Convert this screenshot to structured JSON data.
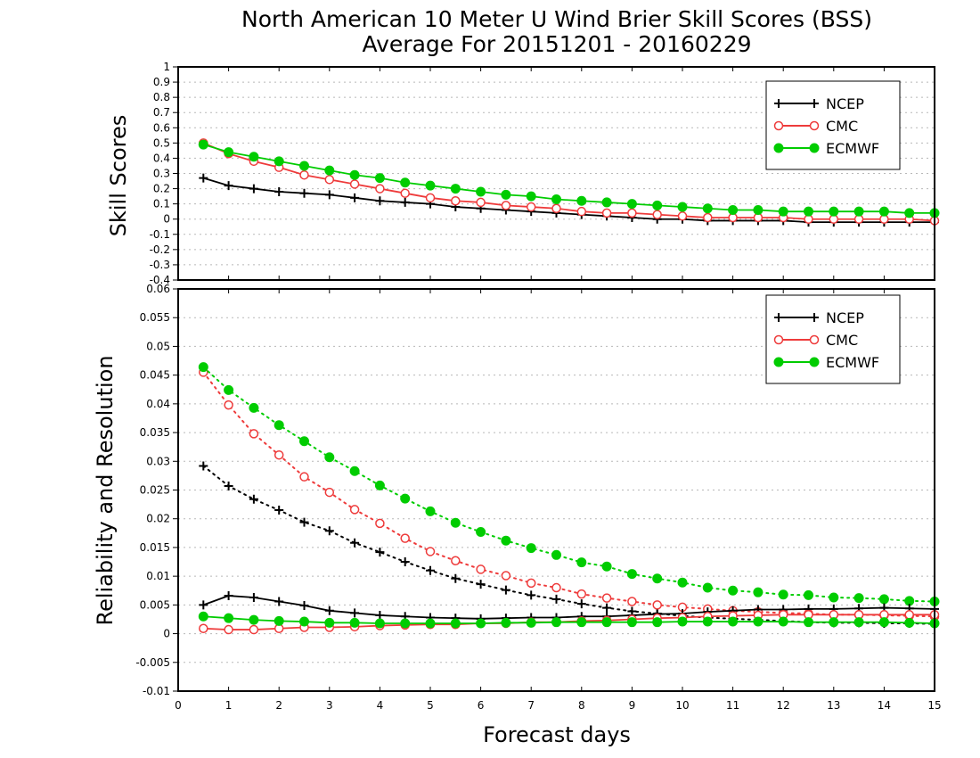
{
  "title_line1": "North American 10 Meter U Wind Brier Skill Scores (BSS)",
  "title_line2": "Average For 20151201 - 20160229",
  "colors": {
    "NCEP": "#000000",
    "CMC": "#ee3b3b",
    "ECMWF": "#00cc00"
  },
  "chart_data": [
    {
      "type": "line",
      "ylabel": "Skill Scores",
      "xlabel": "",
      "xlim": [
        0,
        15
      ],
      "ylim": [
        -0.4,
        1
      ],
      "xticks": [
        0,
        1,
        2,
        3,
        4,
        5,
        6,
        7,
        8,
        9,
        10,
        11,
        12,
        13,
        14,
        15
      ],
      "xtick_labels": [],
      "yticks": [
        -0.4,
        -0.3,
        -0.2,
        -0.1,
        0,
        0.1,
        0.2,
        0.3,
        0.4,
        0.5,
        0.6,
        0.7,
        0.8,
        0.9,
        1
      ],
      "ytick_labels": [
        "-0.4",
        "-0.3",
        "-0.2",
        "-0.1",
        "0",
        "0.1",
        "0.2",
        "0.3",
        "0.4",
        "0.5",
        "0.6",
        "0.7",
        "0.8",
        "0.9",
        "1"
      ],
      "grid": true,
      "legend_position": "top-right",
      "legend": [
        "NCEP",
        "CMC",
        "ECMWF"
      ],
      "x": [
        0.5,
        1,
        1.5,
        2,
        2.5,
        3,
        3.5,
        4,
        4.5,
        5,
        5.5,
        6,
        6.5,
        7,
        7.5,
        8,
        8.5,
        9,
        9.5,
        10,
        10.5,
        11,
        11.5,
        12,
        12.5,
        13,
        13.5,
        14,
        14.5,
        15
      ],
      "series": [
        {
          "name": "NCEP",
          "line": "solid",
          "marker": "plus",
          "values": [
            0.27,
            0.22,
            0.2,
            0.18,
            0.17,
            0.16,
            0.14,
            0.12,
            0.11,
            0.1,
            0.08,
            0.07,
            0.06,
            0.05,
            0.04,
            0.03,
            0.02,
            0.01,
            0.0,
            0.0,
            -0.01,
            -0.01,
            -0.01,
            -0.01,
            -0.02,
            -0.02,
            -0.02,
            -0.02,
            -0.02,
            -0.02
          ]
        },
        {
          "name": "CMC",
          "line": "solid",
          "marker": "open-circle",
          "values": [
            0.5,
            0.43,
            0.38,
            0.34,
            0.29,
            0.26,
            0.23,
            0.2,
            0.17,
            0.14,
            0.12,
            0.11,
            0.09,
            0.08,
            0.07,
            0.05,
            0.04,
            0.04,
            0.03,
            0.02,
            0.01,
            0.01,
            0.01,
            0.01,
            0.0,
            0.0,
            0.0,
            0.0,
            0.0,
            -0.01
          ]
        },
        {
          "name": "ECMWF",
          "line": "solid",
          "marker": "filled-circle",
          "values": [
            0.49,
            0.44,
            0.41,
            0.38,
            0.35,
            0.32,
            0.29,
            0.27,
            0.24,
            0.22,
            0.2,
            0.18,
            0.16,
            0.15,
            0.13,
            0.12,
            0.11,
            0.1,
            0.09,
            0.08,
            0.07,
            0.06,
            0.06,
            0.05,
            0.05,
            0.05,
            0.05,
            0.05,
            0.04,
            0.04
          ]
        }
      ]
    },
    {
      "type": "line",
      "ylabel": "Reliability and Resolution",
      "xlabel": "Forecast days",
      "xlim": [
        0,
        15
      ],
      "ylim": [
        -0.01,
        0.06
      ],
      "xticks": [
        0,
        1,
        2,
        3,
        4,
        5,
        6,
        7,
        8,
        9,
        10,
        11,
        12,
        13,
        14,
        15
      ],
      "xtick_labels": [
        "0",
        "1",
        "2",
        "3",
        "4",
        "5",
        "6",
        "7",
        "8",
        "9",
        "10",
        "11",
        "12",
        "13",
        "14",
        "15"
      ],
      "yticks": [
        -0.01,
        -0.005,
        0,
        0.005,
        0.01,
        0.015,
        0.02,
        0.025,
        0.03,
        0.035,
        0.04,
        0.045,
        0.05,
        0.055,
        0.06
      ],
      "ytick_labels": [
        "-0.01",
        "-0.005",
        "0",
        "0.005",
        "0.01",
        "0.015",
        "0.02",
        "0.025",
        "0.03",
        "0.035",
        "0.04",
        "0.045",
        "0.05",
        "0.055",
        "0.06"
      ],
      "grid": true,
      "legend_position": "top-right",
      "legend": [
        "NCEP",
        "CMC",
        "ECMWF"
      ],
      "x": [
        0.5,
        1,
        1.5,
        2,
        2.5,
        3,
        3.5,
        4,
        4.5,
        5,
        5.5,
        6,
        6.5,
        7,
        7.5,
        8,
        8.5,
        9,
        9.5,
        10,
        10.5,
        11,
        11.5,
        12,
        12.5,
        13,
        13.5,
        14,
        14.5,
        15
      ],
      "series": [
        {
          "name": "NCEP",
          "line": "dotted",
          "marker": "plus",
          "values": [
            0.0292,
            0.0257,
            0.0234,
            0.0215,
            0.0194,
            0.0179,
            0.0158,
            0.0142,
            0.0125,
            0.011,
            0.0096,
            0.0086,
            0.0076,
            0.0067,
            0.006,
            0.0052,
            0.0045,
            0.0039,
            0.0035,
            0.0031,
            0.0028,
            0.0026,
            0.0024,
            0.0022,
            0.002,
            0.0019,
            0.0019,
            0.0018,
            0.0018,
            0.0017
          ]
        },
        {
          "name": "CMC",
          "line": "dotted",
          "marker": "open-circle",
          "values": [
            0.0455,
            0.0398,
            0.0348,
            0.0311,
            0.0273,
            0.0246,
            0.0216,
            0.0192,
            0.0166,
            0.0143,
            0.0127,
            0.0112,
            0.0101,
            0.0088,
            0.008,
            0.0069,
            0.0062,
            0.0056,
            0.005,
            0.0046,
            0.0043,
            0.004,
            0.0038,
            0.0036,
            0.0035,
            0.0033,
            0.0033,
            0.0032,
            0.0031,
            0.003
          ]
        },
        {
          "name": "ECMWF",
          "line": "dotted",
          "marker": "filled-circle",
          "values": [
            0.0464,
            0.0424,
            0.0393,
            0.0363,
            0.0335,
            0.0307,
            0.0283,
            0.0258,
            0.0235,
            0.0213,
            0.0193,
            0.0177,
            0.0162,
            0.0149,
            0.0137,
            0.0124,
            0.0117,
            0.0104,
            0.0096,
            0.0089,
            0.008,
            0.0075,
            0.0072,
            0.0068,
            0.0067,
            0.0063,
            0.0062,
            0.006,
            0.0057,
            0.0056
          ]
        },
        {
          "name": "NCEP",
          "line": "solid",
          "marker": "plus",
          "values": [
            0.005,
            0.0066,
            0.0063,
            0.0056,
            0.0049,
            0.004,
            0.0036,
            0.0032,
            0.003,
            0.0028,
            0.0027,
            0.0026,
            0.0027,
            0.0028,
            0.0028,
            0.003,
            0.003,
            0.0032,
            0.0034,
            0.0035,
            0.0038,
            0.004,
            0.0042,
            0.0042,
            0.0043,
            0.0043,
            0.0044,
            0.0045,
            0.0044,
            0.0043
          ]
        },
        {
          "name": "CMC",
          "line": "solid",
          "marker": "open-circle",
          "values": [
            0.0009,
            0.0007,
            0.0007,
            0.0009,
            0.0011,
            0.0011,
            0.0012,
            0.0014,
            0.0015,
            0.0016,
            0.0016,
            0.0018,
            0.0018,
            0.002,
            0.002,
            0.0022,
            0.0023,
            0.0025,
            0.0027,
            0.0028,
            0.003,
            0.0031,
            0.0032,
            0.0033,
            0.0033,
            0.0033,
            0.0033,
            0.0033,
            0.0033,
            0.0033
          ]
        },
        {
          "name": "ECMWF",
          "line": "solid",
          "marker": "filled-circle",
          "values": [
            0.003,
            0.0027,
            0.0024,
            0.0022,
            0.0021,
            0.0019,
            0.0019,
            0.0018,
            0.0018,
            0.0018,
            0.0018,
            0.0018,
            0.0019,
            0.0019,
            0.002,
            0.002,
            0.002,
            0.002,
            0.002,
            0.0021,
            0.0021,
            0.0021,
            0.0021,
            0.0021,
            0.002,
            0.002,
            0.002,
            0.002,
            0.0019,
            0.0018
          ]
        }
      ]
    }
  ]
}
